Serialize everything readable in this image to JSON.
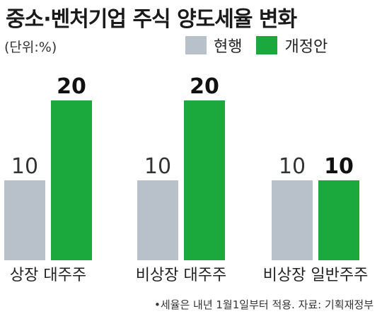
{
  "chart_data": {
    "type": "bar",
    "title": "중소·벤처기업 주식 양도세율 변화",
    "unit_label": "(단위:%)",
    "categories": [
      "상장 대주주",
      "비상장 대주주",
      "비상장 일반주주"
    ],
    "series": [
      {
        "name": "현행",
        "values": [
          10,
          10,
          10
        ],
        "color": "#b8c1c9"
      },
      {
        "name": "개정안",
        "values": [
          20,
          20,
          10
        ],
        "color": "#1ba83c"
      }
    ],
    "ylim": [
      0,
      20
    ],
    "legend_position": "top-right",
    "grid": false,
    "footnote": "•세율은 내년 1월1일부터 적용. 자료: 기획재정부"
  }
}
